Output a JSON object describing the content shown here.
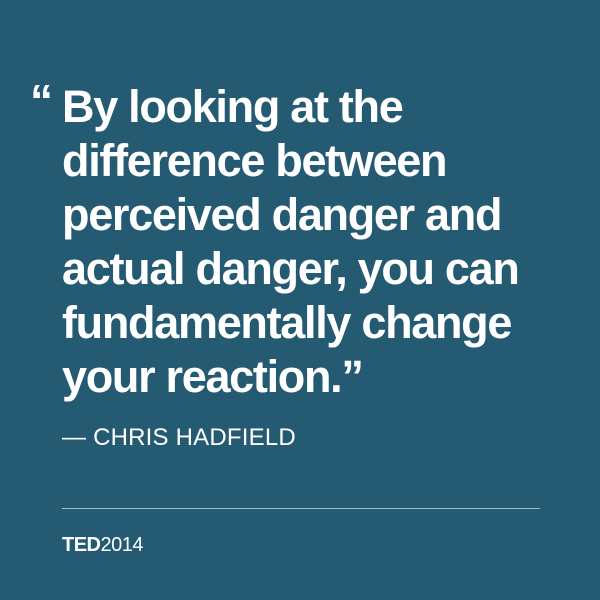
{
  "quote": {
    "open_mark": "“",
    "lines": [
      "By looking at the",
      "difference between",
      "perceived danger and",
      "actual danger, you can",
      "fundamentally change",
      "your reaction.”"
    ]
  },
  "attribution": "— CHRIS HADFIELD",
  "footer": {
    "brand": "TED",
    "year": "2014"
  },
  "colors": {
    "background": "#255a73",
    "text": "#ffffff",
    "divider": "#9fbac8"
  }
}
